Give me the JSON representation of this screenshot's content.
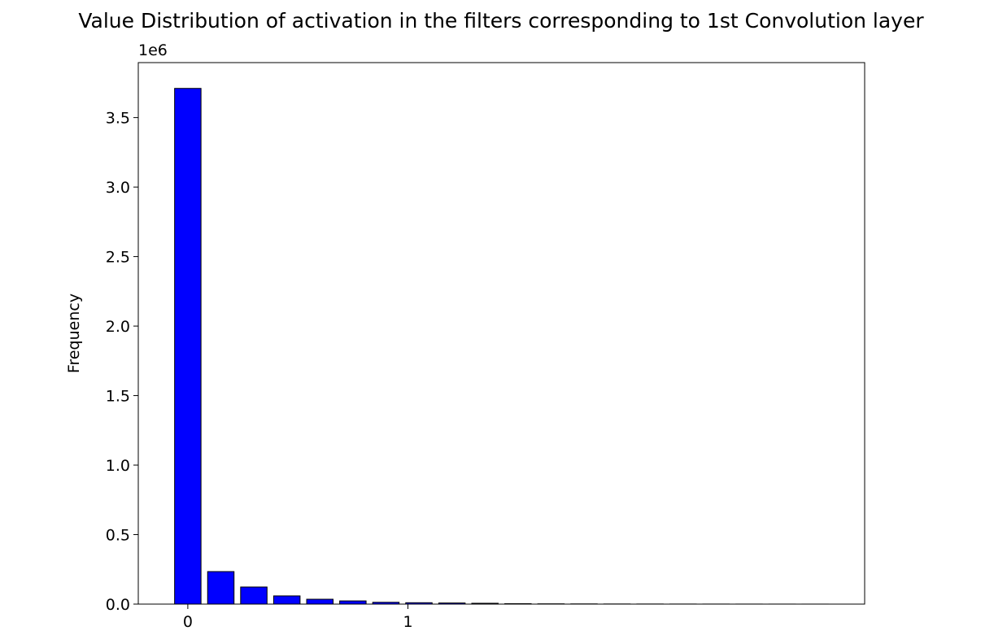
{
  "chart_data": {
    "type": "histogram",
    "title": "Value Distribution of activation in the filters corresponding to 1st Convolution layer",
    "ylabel": "Frequency",
    "y_offset_label": "1e6",
    "bins": [
      -0.075,
      0.075,
      0.225,
      0.375,
      0.525,
      0.675,
      0.825,
      0.975,
      1.125,
      1.275,
      1.425,
      1.575,
      1.725,
      1.875,
      2.025,
      2.175,
      2.325,
      2.475,
      2.625,
      2.775,
      2.925
    ],
    "values": [
      3710000,
      234000,
      123000,
      59000,
      35000,
      23000,
      13000,
      10000,
      8000,
      6000,
      3000,
      2000,
      1500,
      1000,
      800,
      600,
      500,
      400,
      300,
      200
    ],
    "color": "#0000ff",
    "edgecolor": "#000000",
    "xlim": [
      -0.225,
      3.075
    ],
    "xticks": [
      0,
      1
    ],
    "ylim": [
      0,
      3895500
    ],
    "yticks": [
      {
        "value": 0,
        "label": "0.0"
      },
      {
        "value": 500000,
        "label": "0.5"
      },
      {
        "value": 1000000,
        "label": "1.0"
      },
      {
        "value": 1500000,
        "label": "1.5"
      },
      {
        "value": 2000000,
        "label": "2.0"
      },
      {
        "value": 2500000,
        "label": "2.5"
      },
      {
        "value": 3000000,
        "label": "3.0"
      },
      {
        "value": 3500000,
        "label": "3.5"
      }
    ]
  }
}
